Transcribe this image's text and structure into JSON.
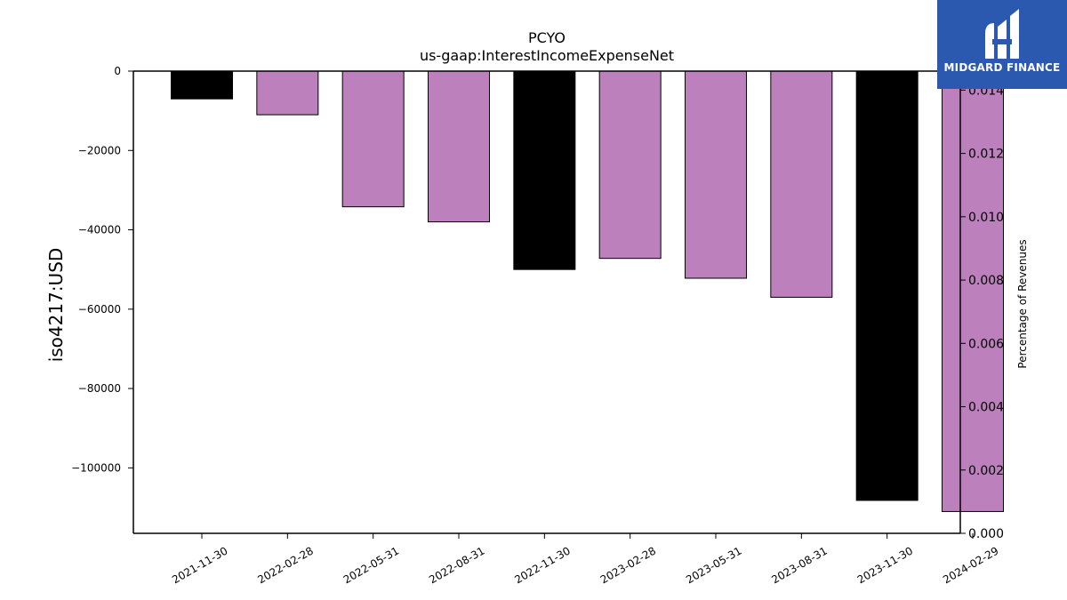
{
  "chart_data": {
    "type": "bar",
    "title": "PCYO",
    "subtitle": "us-gaap:InterestIncomeExpenseNet",
    "ylabel": "iso4217:USD",
    "y2label": "Percentage of Revenues",
    "categories": [
      "2021-11-30",
      "2022-02-28",
      "2022-05-31",
      "2022-08-31",
      "2022-11-30",
      "2023-02-28",
      "2023-05-31",
      "2023-08-31",
      "2023-11-30",
      "2024-02-29"
    ],
    "values": [
      -7000,
      -11000,
      -34200,
      -38000,
      -50000,
      -47200,
      -52200,
      -57000,
      -108200,
      -111000
    ],
    "bar_colors": [
      "#000000",
      "#bc80bd",
      "#bc80bd",
      "#bc80bd",
      "#000000",
      "#bc80bd",
      "#bc80bd",
      "#bc80bd",
      "#000000",
      "#bc80bd"
    ],
    "ylim": [
      -116500,
      0
    ],
    "y_ticks": [
      0,
      -20000,
      -40000,
      -60000,
      -80000,
      -100000
    ],
    "y_tick_labels": [
      "0",
      "−20000",
      "−40000",
      "−60000",
      "−80000",
      "−100000"
    ],
    "y2lim": [
      0,
      0.0146
    ],
    "y2_ticks": [
      0,
      0.002,
      0.004,
      0.006,
      0.008,
      0.01,
      0.012,
      0.014
    ],
    "y2_tick_labels": [
      "0.000",
      "0.002",
      "0.004",
      "0.006",
      "0.008",
      "0.010",
      "0.012",
      "0.014"
    ],
    "grid": false,
    "legend": "none"
  },
  "logo": {
    "text": "MIDGARD FINANCE",
    "color": "#2b59b0"
  }
}
